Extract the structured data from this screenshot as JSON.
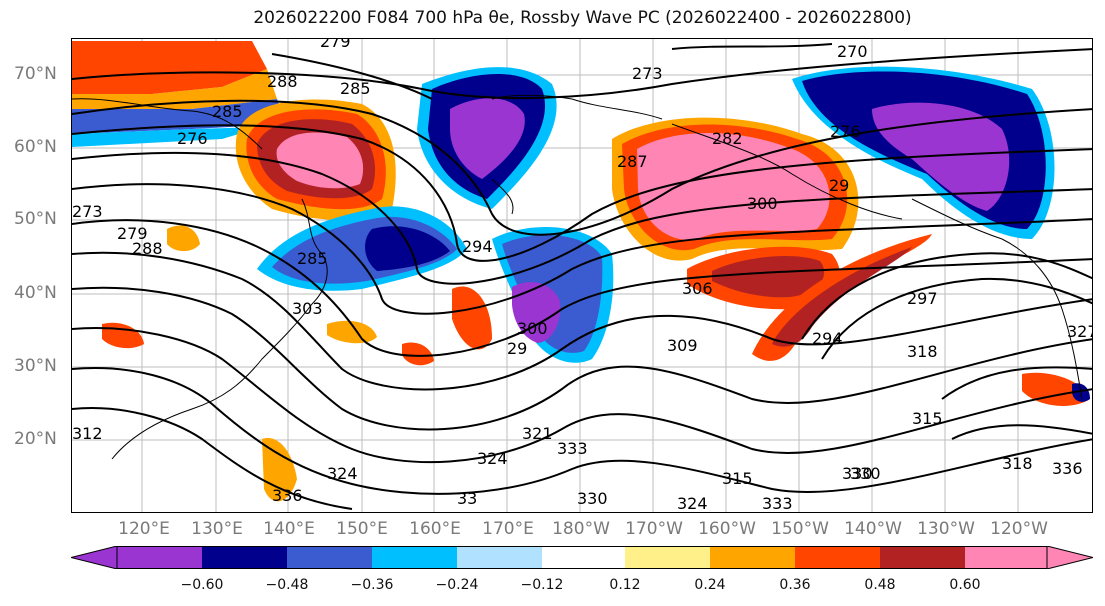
{
  "title": "2026022200 F084 700 hPa θe, Rossby Wave PC (2026022400 - 2026022800)",
  "map": {
    "lat_labels": [
      "70°N",
      "60°N",
      "50°N",
      "40°N",
      "30°N",
      "20°N"
    ],
    "lon_labels": [
      "120°E",
      "130°E",
      "140°E",
      "150°E",
      "160°E",
      "170°E",
      "180°W",
      "170°W",
      "160°W",
      "150°W",
      "140°W",
      "130°W",
      "120°W"
    ],
    "contour_labels": [
      "279",
      "270",
      "273",
      "288",
      "285",
      "285",
      "276",
      "276",
      "273",
      "282",
      "279",
      "288",
      "287",
      "285",
      "29",
      "300",
      "294",
      "303",
      "306",
      "300",
      "29",
      "297",
      "294",
      "318",
      "309",
      "315",
      "321",
      "324",
      "327",
      "333",
      "330",
      "324",
      "336",
      "333",
      "330",
      "330",
      "315",
      "318",
      "324",
      "336",
      "312",
      "33"
    ],
    "feature_colors": {
      "strong_negative": "#9a35d2",
      "negative": "#00008c",
      "moderate_negative": "#3b5bd0",
      "weak_negative": "#00bfff",
      "slight_negative": "#b0e2ff",
      "slight_positive": "#fff08a",
      "weak_positive": "#ffa500",
      "moderate_positive": "#ff4500",
      "positive": "#b22222",
      "strong_positive": "#ff85b4"
    }
  },
  "colorbar": {
    "colors": [
      "#9a35d2",
      "#00008c",
      "#3b5bd0",
      "#00bfff",
      "#b0e2ff",
      "#ffffff",
      "#fff08a",
      "#ffa500",
      "#ff4500",
      "#b22222",
      "#ff85b4"
    ],
    "tick_labels": [
      "−0.60",
      "−0.48",
      "−0.36",
      "−0.24",
      "−0.12",
      "0.12",
      "0.24",
      "0.36",
      "0.48",
      "0.60"
    ]
  }
}
